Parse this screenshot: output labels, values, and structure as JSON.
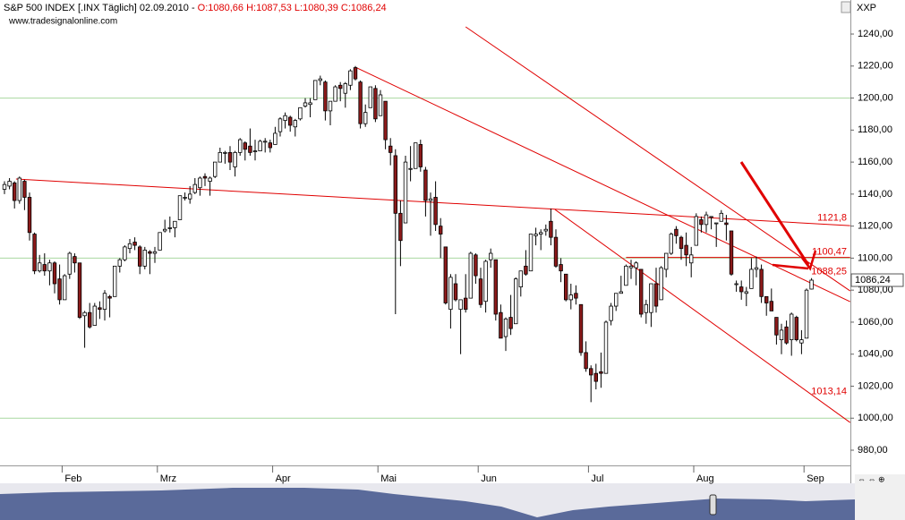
{
  "chart_data": {
    "type": "candlestick",
    "title": "S&P 500 INDEX [.INX  Täglich] 02.09.2010 -",
    "ohlc_text": "O:1080,66 H:1087,53 L:1080,39 C:1086,24",
    "subtitle": "www.tradesignalonline.com",
    "symbol": "XXP",
    "last_price_label": "1086,24",
    "up_color": "#ffffff",
    "down_color": "#8b1a1a",
    "trendline_color": "#e00000",
    "hline_color": "#a8d8a0",
    "ylim": [
      970.5,
      1251.2
    ],
    "yticks": [
      {
        "value": 980,
        "label": "980,00"
      },
      {
        "value": 1000,
        "label": "1000,00"
      },
      {
        "value": 1020,
        "label": "1020,00"
      },
      {
        "value": 1040,
        "label": "1040,00"
      },
      {
        "value": 1060,
        "label": "1060,00"
      },
      {
        "value": 1080,
        "label": "1080,00"
      },
      {
        "value": 1100,
        "label": "1100,00"
      },
      {
        "value": 1120,
        "label": "1120,00"
      },
      {
        "value": 1140,
        "label": "1140,00"
      },
      {
        "value": 1160,
        "label": "1160,00"
      },
      {
        "value": 1180,
        "label": "1180,00"
      },
      {
        "value": 1200,
        "label": "1200,00"
      },
      {
        "value": 1220,
        "label": "1220,00"
      },
      {
        "value": 1240,
        "label": "1240,00"
      }
    ],
    "hlines": [
      1000,
      1100,
      1200
    ],
    "categories": [
      null,
      null,
      null,
      null,
      null,
      null,
      null,
      null,
      null,
      null,
      null,
      null,
      "Feb",
      null,
      null,
      null,
      null,
      null,
      null,
      null,
      null,
      null,
      null,
      null,
      null,
      null,
      null,
      null,
      null,
      null,
      null,
      "Mrz",
      null,
      null,
      null,
      null,
      null,
      null,
      null,
      null,
      null,
      null,
      null,
      null,
      null,
      null,
      null,
      null,
      null,
      null,
      null,
      null,
      null,
      null,
      "Apr",
      null,
      null,
      null,
      null,
      null,
      null,
      null,
      null,
      null,
      null,
      null,
      null,
      null,
      null,
      null,
      null,
      null,
      null,
      null,
      null,
      "Mai",
      null,
      null,
      null,
      null,
      null,
      null,
      null,
      null,
      null,
      null,
      null,
      null,
      null,
      null,
      null,
      null,
      null,
      null,
      null,
      "Jun",
      null,
      null,
      null,
      null,
      null,
      null,
      null,
      null,
      null,
      null,
      null,
      null,
      null,
      null,
      null,
      null,
      null,
      null,
      null,
      null,
      null,
      "Jul",
      null,
      null,
      null,
      null,
      null,
      null,
      null,
      null,
      null,
      null,
      null,
      null,
      null,
      null,
      null,
      null,
      null,
      null,
      null,
      null,
      "Aug",
      null,
      null,
      null,
      null,
      null,
      null,
      null,
      null,
      null,
      null,
      null,
      null,
      null,
      null,
      null,
      null,
      null,
      null,
      null,
      null,
      null,
      "Sep",
      null
    ],
    "values": [
      [
        1143,
        1148,
        1140,
        1146
      ],
      [
        1145,
        1150,
        1143,
        1148
      ],
      [
        1147,
        1148,
        1131,
        1136
      ],
      [
        1136,
        1151,
        1134,
        1150
      ],
      [
        1148,
        1149,
        1130,
        1138
      ],
      [
        1138,
        1141,
        1111,
        1116
      ],
      [
        1115,
        1116,
        1090,
        1092
      ],
      [
        1092,
        1102,
        1091,
        1097
      ],
      [
        1096,
        1103,
        1089,
        1092
      ],
      [
        1092,
        1099,
        1083,
        1097
      ],
      [
        1097,
        1098,
        1078,
        1084
      ],
      [
        1087,
        1096,
        1071,
        1074
      ],
      [
        1074,
        1090,
        1074,
        1089
      ],
      [
        1090,
        1104,
        1087,
        1103
      ],
      [
        1101,
        1103,
        1091,
        1097
      ],
      [
        1097,
        1097,
        1062,
        1063
      ],
      [
        1064,
        1067,
        1044,
        1066
      ],
      [
        1066,
        1072,
        1056,
        1057
      ],
      [
        1058,
        1072,
        1058,
        1070
      ],
      [
        1069,
        1073,
        1062,
        1068
      ],
      [
        1068,
        1080,
        1061,
        1078
      ],
      [
        1076,
        1077,
        1063,
        1075
      ],
      [
        1076,
        1095,
        1076,
        1095
      ],
      [
        1095,
        1100,
        1091,
        1099
      ],
      [
        1099,
        1108,
        1098,
        1107
      ],
      [
        1106,
        1112,
        1103,
        1109
      ],
      [
        1110,
        1113,
        1105,
        1108
      ],
      [
        1107,
        1108,
        1090,
        1095
      ],
      [
        1095,
        1107,
        1093,
        1105
      ],
      [
        1104,
        1105,
        1090,
        1103
      ],
      [
        1103,
        1107,
        1097,
        1104
      ],
      [
        1105,
        1116,
        1105,
        1116
      ],
      [
        1117,
        1124,
        1116,
        1118
      ],
      [
        1119,
        1126,
        1116,
        1119
      ],
      [
        1119,
        1123,
        1113,
        1123
      ],
      [
        1124,
        1139,
        1124,
        1139
      ],
      [
        1138,
        1141,
        1136,
        1138
      ],
      [
        1137,
        1145,
        1134,
        1140
      ],
      [
        1141,
        1150,
        1140,
        1146
      ],
      [
        1144,
        1151,
        1139,
        1150
      ],
      [
        1151,
        1153,
        1145,
        1150
      ],
      [
        1148,
        1151,
        1139,
        1150
      ],
      [
        1151,
        1160,
        1150,
        1160
      ],
      [
        1160,
        1169,
        1160,
        1166
      ],
      [
        1166,
        1167,
        1159,
        1166
      ],
      [
        1166,
        1170,
        1155,
        1160
      ],
      [
        1157,
        1167,
        1151,
        1166
      ],
      [
        1166,
        1175,
        1164,
        1174
      ],
      [
        1172,
        1173,
        1161,
        1168
      ],
      [
        1170,
        1181,
        1164,
        1166
      ],
      [
        1167,
        1174,
        1161,
        1167
      ],
      [
        1167,
        1174,
        1167,
        1173
      ],
      [
        1173,
        1175,
        1166,
        1173
      ],
      [
        1172,
        1174,
        1166,
        1169
      ],
      [
        1171,
        1182,
        1171,
        1178
      ],
      [
        1179,
        1188,
        1176,
        1187
      ],
      [
        1186,
        1191,
        1181,
        1189
      ],
      [
        1188,
        1189,
        1179,
        1183
      ],
      [
        1182,
        1187,
        1176,
        1186
      ],
      [
        1187,
        1194,
        1186,
        1194
      ],
      [
        1195,
        1200,
        1194,
        1197
      ],
      [
        1196,
        1200,
        1188,
        1197
      ],
      [
        1199,
        1211,
        1199,
        1211
      ],
      [
        1211,
        1214,
        1208,
        1212
      ],
      [
        1210,
        1211,
        1186,
        1192
      ],
      [
        1192,
        1198,
        1183,
        1198
      ],
      [
        1198,
        1208,
        1198,
        1207
      ],
      [
        1208,
        1210,
        1198,
        1206
      ],
      [
        1203,
        1210,
        1194,
        1209
      ],
      [
        1208,
        1218,
        1205,
        1217
      ],
      [
        1219,
        1220,
        1211,
        1212
      ],
      [
        1210,
        1211,
        1181,
        1184
      ],
      [
        1184,
        1196,
        1182,
        1191
      ],
      [
        1194,
        1207,
        1194,
        1207
      ],
      [
        1206,
        1208,
        1185,
        1187
      ],
      [
        1189,
        1205,
        1189,
        1202
      ],
      [
        1198,
        1198,
        1168,
        1174
      ],
      [
        1170,
        1175,
        1158,
        1166
      ],
      [
        1164,
        1168,
        1065,
        1128
      ],
      [
        1128,
        1136,
        1095,
        1111
      ],
      [
        1122,
        1164,
        1122,
        1160
      ],
      [
        1156,
        1170,
        1148,
        1156
      ],
      [
        1156,
        1172,
        1156,
        1172
      ],
      [
        1171,
        1174,
        1154,
        1157
      ],
      [
        1155,
        1157,
        1126,
        1136
      ],
      [
        1136,
        1141,
        1114,
        1137
      ],
      [
        1138,
        1148,
        1117,
        1121
      ],
      [
        1120,
        1125,
        1100,
        1115
      ],
      [
        1107,
        1107,
        1071,
        1072
      ],
      [
        1068,
        1090,
        1056,
        1088
      ],
      [
        1084,
        1090,
        1073,
        1074
      ],
      [
        1068,
        1074,
        1040,
        1074
      ],
      [
        1075,
        1090,
        1066,
        1068
      ],
      [
        1075,
        1104,
        1075,
        1103
      ],
      [
        1102,
        1103,
        1084,
        1089
      ],
      [
        1087,
        1094,
        1069,
        1071
      ],
      [
        1073,
        1099,
        1066,
        1098
      ],
      [
        1099,
        1106,
        1094,
        1103
      ],
      [
        1099,
        1099,
        1061,
        1065
      ],
      [
        1066,
        1071,
        1050,
        1050
      ],
      [
        1051,
        1063,
        1042,
        1062
      ],
      [
        1063,
        1077,
        1052,
        1056
      ],
      [
        1059,
        1088,
        1059,
        1087
      ],
      [
        1082,
        1092,
        1076,
        1092
      ],
      [
        1095,
        1105,
        1089,
        1090
      ],
      [
        1092,
        1115,
        1092,
        1115
      ],
      [
        1114,
        1119,
        1108,
        1115
      ],
      [
        1115,
        1118,
        1105,
        1116
      ],
      [
        1117,
        1121,
        1114,
        1118
      ],
      [
        1123,
        1131,
        1108,
        1113
      ],
      [
        1113,
        1118,
        1094,
        1095
      ],
      [
        1096,
        1100,
        1085,
        1092
      ],
      [
        1090,
        1090,
        1073,
        1074
      ],
      [
        1074,
        1084,
        1068,
        1077
      ],
      [
        1078,
        1083,
        1071,
        1075
      ],
      [
        1071,
        1071,
        1039,
        1041
      ],
      [
        1041,
        1048,
        1029,
        1031
      ],
      [
        1031,
        1033,
        1010,
        1027
      ],
      [
        1028,
        1034,
        1018,
        1023
      ],
      [
        1029,
        1041,
        1019,
        1028
      ],
      [
        1028,
        1061,
        1028,
        1060
      ],
      [
        1061,
        1072,
        1058,
        1070
      ],
      [
        1070,
        1078,
        1067,
        1078
      ],
      [
        1078,
        1089,
        1078,
        1079
      ],
      [
        1083,
        1096,
        1083,
        1095
      ],
      [
        1094,
        1099,
        1087,
        1095
      ],
      [
        1094,
        1098,
        1083,
        1097
      ],
      [
        1093,
        1093,
        1063,
        1065
      ],
      [
        1066,
        1074,
        1059,
        1071
      ],
      [
        1066,
        1084,
        1057,
        1084
      ],
      [
        1084,
        1094,
        1066,
        1070
      ],
      [
        1074,
        1095,
        1074,
        1094
      ],
      [
        1093,
        1103,
        1088,
        1103
      ],
      [
        1103,
        1116,
        1102,
        1115
      ],
      [
        1118,
        1120,
        1109,
        1114
      ],
      [
        1113,
        1114,
        1099,
        1106
      ],
      [
        1108,
        1116,
        1095,
        1102
      ],
      [
        1097,
        1107,
        1088,
        1102
      ],
      [
        1108,
        1128,
        1108,
        1126
      ],
      [
        1124,
        1126,
        1116,
        1121
      ],
      [
        1121,
        1129,
        1116,
        1127
      ],
      [
        1126,
        1126,
        1118,
        1126
      ],
      [
        1122,
        1122,
        1107,
        1122
      ],
      [
        1123,
        1130,
        1123,
        1128
      ],
      [
        1122,
        1127,
        1111,
        1121
      ],
      [
        1117,
        1117,
        1089,
        1090
      ],
      [
        1084,
        1086,
        1079,
        1084
      ],
      [
        1082,
        1086,
        1074,
        1079
      ],
      [
        1078,
        1082,
        1070,
        1079
      ],
      [
        1081,
        1100,
        1081,
        1093
      ],
      [
        1093,
        1101,
        1088,
        1094
      ],
      [
        1093,
        1096,
        1072,
        1076
      ],
      [
        1076,
        1076,
        1064,
        1072
      ],
      [
        1073,
        1081,
        1067,
        1067
      ],
      [
        1063,
        1063,
        1046,
        1052
      ],
      [
        1049,
        1059,
        1040,
        1055
      ],
      [
        1057,
        1061,
        1046,
        1047
      ],
      [
        1049,
        1066,
        1039,
        1065
      ],
      [
        1063,
        1064,
        1048,
        1049
      ],
      [
        1047,
        1055,
        1040,
        1049
      ],
      [
        1050,
        1081,
        1050,
        1080
      ],
      [
        1080.66,
        1087.53,
        1080.39,
        1086.24
      ]
    ],
    "trendlines": [
      {
        "points": [
          [
            92,
            1244.5
          ],
          [
            168.7,
            1079.5
          ]
        ]
      },
      {
        "label": "1088,25",
        "value": 1088.25,
        "points": [
          [
            70,
            1219.3
          ],
          [
            168.7,
            1072.8
          ]
        ]
      },
      {
        "label": "1121,8",
        "value": 1121.8,
        "points": [
          [
            2.3,
            1149.4
          ],
          [
            168.7,
            1120.3
          ]
        ]
      },
      {
        "label": "1013,14",
        "value": 1013.14,
        "points": [
          [
            109.8,
            1130.4
          ],
          [
            168.7,
            997.3
          ]
        ]
      },
      {
        "label": "1100,47",
        "value": 1100.47,
        "points": [
          [
            124,
            1100.47
          ],
          [
            168.7,
            1100.47
          ]
        ]
      }
    ]
  }
}
